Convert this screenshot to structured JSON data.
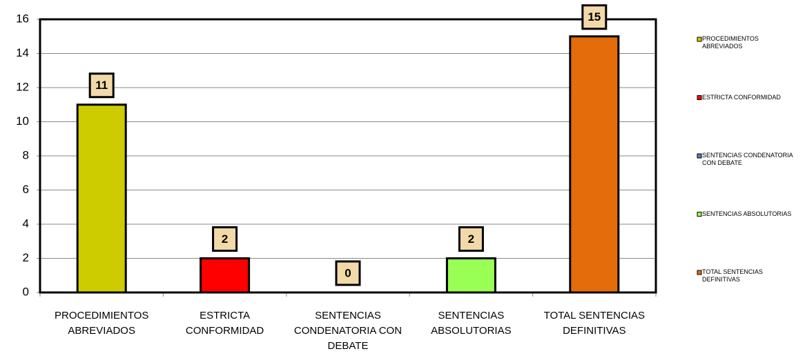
{
  "chart_data": {
    "type": "bar",
    "categories": [
      "PROCEDIMIENTOS ABREVIADOS",
      "ESTRICTA CONFORMIDAD",
      "SENTENCIAS CONDENATORIA CON DEBATE",
      "SENTENCIAS ABSOLUTORIAS",
      "TOTAL SENTENCIAS DEFINITIVAS"
    ],
    "series": [
      {
        "name": "PROCEDIMIENTOS ABREVIADOS",
        "color": "#cccc00",
        "values": [
          11,
          null,
          null,
          null,
          null
        ]
      },
      {
        "name": "ESTRICTA CONFORMIDAD",
        "color": "#ff0000",
        "values": [
          null,
          2,
          null,
          null,
          null
        ]
      },
      {
        "name": "SENTENCIAS CONDENATORIA CON DEBATE",
        "color": "#4f81bd",
        "values": [
          null,
          null,
          0,
          null,
          null
        ]
      },
      {
        "name": "SENTENCIAS ABSOLUTORIAS",
        "color": "#99ff55",
        "values": [
          null,
          null,
          null,
          2,
          null
        ]
      },
      {
        "name": "TOTAL SENTENCIAS DEFINITIVAS",
        "color": "#e46c0a",
        "values": [
          null,
          null,
          null,
          null,
          15
        ]
      }
    ],
    "ylim": [
      0,
      16
    ],
    "yticks": [
      0,
      2,
      4,
      6,
      8,
      10,
      12,
      14,
      16
    ],
    "grid": true,
    "legend": "right"
  }
}
